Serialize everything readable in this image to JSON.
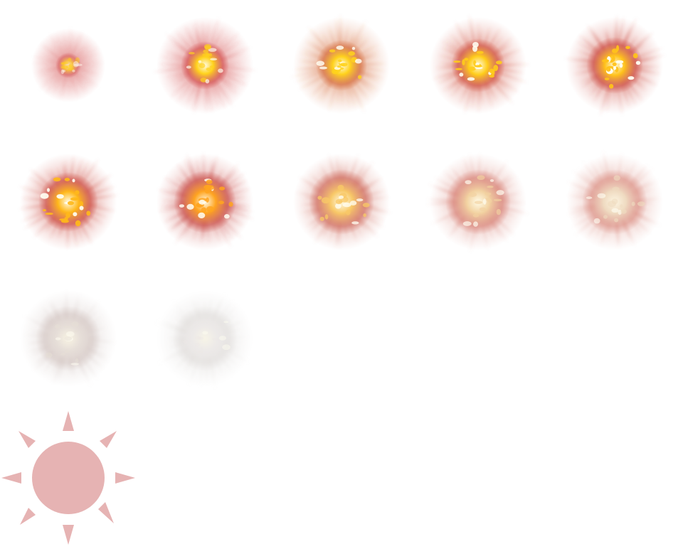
{
  "spritesheet": {
    "frame_count": 12,
    "columns": 5,
    "frames": [
      {
        "stage": 1,
        "intensity": 0.25,
        "glow": "#ffcf1a",
        "halo": "#d24a4a"
      },
      {
        "stage": 2,
        "intensity": 0.55,
        "glow": "#ffd21c",
        "halo": "#d24a4a"
      },
      {
        "stage": 3,
        "intensity": 0.8,
        "glow": "#ffd21c",
        "halo": "#d56a3a"
      },
      {
        "stage": 4,
        "intensity": 0.9,
        "glow": "#ffcd1a",
        "halo": "#d0503f"
      },
      {
        "stage": 5,
        "intensity": 1.0,
        "glow": "#ffc21a",
        "halo": "#cc4a40"
      },
      {
        "stage": 6,
        "intensity": 0.95,
        "glow": "#ffb81a",
        "halo": "#cc4a40"
      },
      {
        "stage": 7,
        "intensity": 0.85,
        "glow": "#ffa41f",
        "halo": "#c84a44"
      },
      {
        "stage": 8,
        "intensity": 0.7,
        "glow": "#f8c867",
        "halo": "#cf6a5c"
      },
      {
        "stage": 9,
        "intensity": 0.55,
        "glow": "#f2d2a1",
        "halo": "#d78074"
      },
      {
        "stage": 10,
        "intensity": 0.45,
        "glow": "#efdcc0",
        "halo": "#da8c80"
      },
      {
        "stage": 11,
        "intensity": 0.3,
        "glow": "#e6ded6",
        "halo": "#cfc0bc"
      },
      {
        "stage": 12,
        "intensity": 0.15,
        "glow": "#ece8e6",
        "halo": "#dad6d4"
      }
    ]
  },
  "marker": {
    "icon": "sun-icon",
    "color": "#e6b3b3"
  }
}
